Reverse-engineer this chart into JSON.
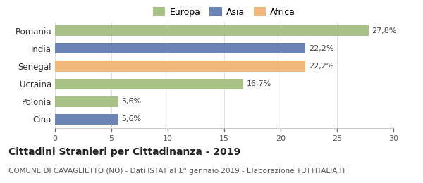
{
  "categories": [
    "Romania",
    "India",
    "Senegal",
    "Ucraina",
    "Polonia",
    "Cina"
  ],
  "values": [
    27.8,
    22.2,
    22.2,
    16.7,
    5.6,
    5.6
  ],
  "labels": [
    "27,8%",
    "22,2%",
    "22,2%",
    "16,7%",
    "5,6%",
    "5,6%"
  ],
  "bar_colors": [
    "#a8c187",
    "#6b83b5",
    "#f0b87a",
    "#a8c187",
    "#a8c187",
    "#6b83b5"
  ],
  "legend_labels": [
    "Europa",
    "Asia",
    "Africa"
  ],
  "legend_colors": [
    "#a8c187",
    "#6b83b5",
    "#f0b87a"
  ],
  "title": "Cittadini Stranieri per Cittadinanza - 2019",
  "subtitle": "COMUNE DI CAVAGLIETTO (NO) - Dati ISTAT al 1° gennaio 2019 - Elaborazione TUTTITALIA.IT",
  "xlim": [
    0,
    30
  ],
  "xticks": [
    0,
    5,
    10,
    15,
    20,
    25,
    30
  ],
  "title_fontsize": 10,
  "subtitle_fontsize": 7.5,
  "label_fontsize": 8,
  "ytick_fontsize": 8.5,
  "xtick_fontsize": 8,
  "legend_fontsize": 9,
  "background_color": "#ffffff"
}
